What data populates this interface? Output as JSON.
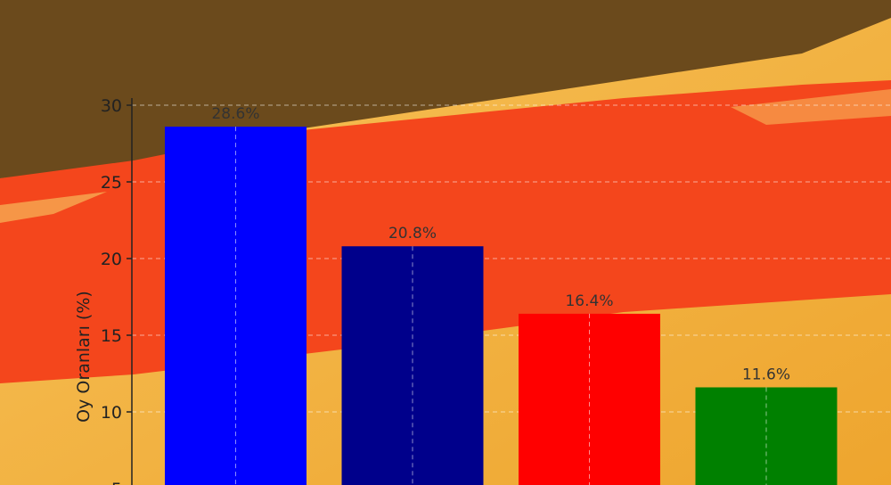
{
  "chart_data": {
    "type": "bar",
    "title": "",
    "xlabel": "",
    "ylabel": "Oy Oranları (%)",
    "ylim": [
      0,
      31
    ],
    "yticks": [
      5,
      10,
      15,
      20,
      25,
      30
    ],
    "grid": true,
    "categories": [
      "",
      "",
      "",
      ""
    ],
    "values": [
      28.6,
      20.8,
      16.4,
      11.6
    ],
    "data_labels": [
      "28.6%",
      "20.8%",
      "16.4%",
      "11.6%"
    ],
    "colors": [
      "#0000ff",
      "#00008b",
      "#ff0000",
      "#008000"
    ]
  }
}
